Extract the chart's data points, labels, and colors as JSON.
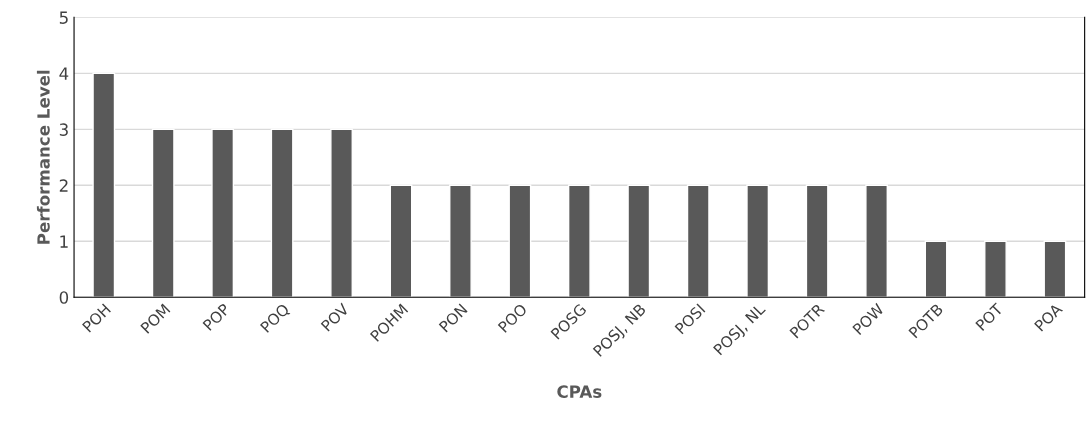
{
  "chart_data": {
    "type": "bar",
    "xlabel": "CPAs",
    "ylabel": "Performance Level",
    "categories": [
      "POH",
      "POM",
      "POP",
      "POQ",
      "POV",
      "POHM",
      "PON",
      "POO",
      "POSG",
      "POSJ, NB",
      "POSI",
      "POSJ, NL",
      "POTR",
      "POW",
      "POTB",
      "POT",
      "POA"
    ],
    "values": [
      4,
      3,
      3,
      3,
      3,
      2,
      2,
      2,
      2,
      2,
      2,
      2,
      2,
      2,
      1,
      1,
      1
    ],
    "color": "#595959",
    "ylim": [
      0,
      5
    ],
    "yticks": [
      0,
      1,
      2,
      3,
      4,
      5
    ],
    "grid": "y"
  }
}
